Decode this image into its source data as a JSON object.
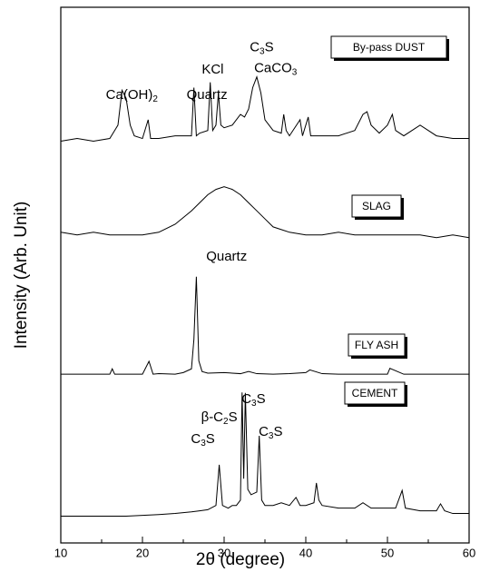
{
  "chart_data": {
    "type": "line",
    "xlabel": "2θ (degree)",
    "ylabel": "Intensity (Arb. Unit)",
    "xlim": [
      10,
      60
    ],
    "ylim": [
      0,
      100
    ],
    "xticks": [
      10,
      20,
      30,
      40,
      50,
      60
    ],
    "xticks_minor": [
      15,
      25,
      35,
      45,
      55
    ],
    "series": [
      {
        "name": "By-pass DUST",
        "color": "#000000",
        "x": [
          10,
          12,
          14,
          16,
          17,
          17.5,
          18,
          18.5,
          19,
          20,
          20.7,
          21,
          22,
          24,
          26,
          26.3,
          26.6,
          27,
          28,
          28.3,
          28.6,
          29,
          29.3,
          29.6,
          30,
          31,
          32,
          32.5,
          33,
          33.5,
          34,
          34.5,
          35,
          36,
          37,
          37.3,
          37.6,
          38,
          39.3,
          39.6,
          40.3,
          40.6,
          42,
          44,
          46,
          47,
          47.5,
          48,
          49,
          50,
          50.6,
          51,
          52,
          54,
          55,
          56,
          58,
          60
        ],
        "values": [
          75,
          75.5,
          75,
          75.5,
          78,
          84.5,
          83,
          78,
          76,
          75.5,
          79,
          75.5,
          75.5,
          76,
          76,
          85,
          76,
          76.5,
          77,
          86,
          77,
          78,
          84,
          78,
          77.5,
          78,
          80,
          79.5,
          81,
          85,
          87,
          84,
          79,
          77,
          76.5,
          80,
          77,
          76,
          79,
          76,
          79.5,
          76,
          76,
          76,
          77,
          80,
          80.5,
          78,
          76.5,
          78,
          80,
          77,
          76,
          78,
          77,
          76,
          75.5,
          75.5
        ]
      },
      {
        "name": "SLAG",
        "color": "#000000",
        "x": [
          10,
          12,
          14,
          16,
          18,
          20,
          22,
          24,
          26,
          27,
          28,
          29,
          30,
          31,
          32,
          33,
          34,
          35,
          36,
          38,
          40,
          42,
          44,
          46,
          48,
          50,
          52,
          54,
          56,
          58,
          60
        ],
        "values": [
          58,
          57.5,
          58,
          57.5,
          57.5,
          57.5,
          58,
          59.5,
          62,
          63.5,
          65,
          66,
          66.5,
          66,
          65,
          63.5,
          62,
          60.5,
          59,
          58,
          57.5,
          57.5,
          58,
          57.5,
          57.5,
          57.5,
          57.5,
          57.5,
          57,
          57.5,
          57
        ]
      },
      {
        "name": "FLY ASH",
        "color": "#000000",
        "x": [
          10,
          14,
          16,
          16.3,
          16.6,
          18,
          20,
          20.8,
          21.3,
          22,
          24,
          25,
          26,
          26.3,
          26.6,
          26.9,
          27.3,
          28,
          30,
          32,
          33,
          34,
          36,
          38,
          40,
          40.5,
          42,
          44,
          46,
          48,
          50,
          50.3,
          52,
          54,
          56,
          58,
          60
        ],
        "values": [
          31.5,
          31.5,
          31.5,
          32.5,
          31.5,
          31.5,
          31.5,
          33.9,
          31.5,
          31.6,
          31.5,
          31.8,
          32.5,
          38,
          49.7,
          34,
          32,
          31.7,
          31.8,
          31.6,
          32,
          31.6,
          31.5,
          31.6,
          31.8,
          32.3,
          31.6,
          31.5,
          31.5,
          31.5,
          31.5,
          32.6,
          31.5,
          31.5,
          31.5,
          31.5,
          31.5
        ]
      },
      {
        "name": "CEMENT",
        "color": "#000000",
        "x": [
          10,
          14,
          18,
          22,
          24,
          26,
          27,
          28,
          29,
          29.4,
          29.8,
          30.5,
          31,
          31.5,
          32,
          32.2,
          32.4,
          32.6,
          32.9,
          33.3,
          34,
          34.3,
          34.6,
          35,
          36,
          37,
          38,
          38.8,
          39.3,
          40,
          41,
          41.3,
          41.6,
          42,
          44,
          46,
          47,
          48,
          50,
          51,
          51.8,
          52.2,
          54,
          56,
          56.5,
          57,
          58,
          60
        ],
        "values": [
          5,
          5,
          5,
          5.3,
          5.5,
          5.8,
          6,
          6.2,
          7,
          14.6,
          7,
          6.5,
          7,
          7,
          8,
          28.1,
          12,
          28,
          10,
          9,
          9.5,
          20,
          8,
          7,
          7,
          7.5,
          7,
          8.5,
          7,
          7,
          7.5,
          11.2,
          8,
          7,
          6.5,
          6.5,
          7.5,
          6.5,
          6.5,
          6.5,
          9.8,
          6.5,
          6,
          6,
          7.3,
          6,
          5.5,
          5.5
        ]
      }
    ],
    "annotations": [
      {
        "text": "Ca(OH)2",
        "x": 18.7,
        "y": 83.6
      },
      {
        "text": "Quartz",
        "x": 27.9,
        "y": 83.6
      },
      {
        "text": "KCl",
        "x": 28.6,
        "y": 88.3
      },
      {
        "text": "C3S",
        "x": 34.6,
        "y": 92.5
      },
      {
        "text": "CaCO3",
        "x": 36.3,
        "y": 88.6
      },
      {
        "text": "Quartz",
        "x": 30.3,
        "y": 53.4
      },
      {
        "text": "C3S",
        "x": 33.6,
        "y": 26.8
      },
      {
        "text": "β-C2S",
        "x": 29.4,
        "y": 23.4
      },
      {
        "text": "C3S",
        "x": 35.7,
        "y": 20.7
      },
      {
        "text": "C3S",
        "x": 27.4,
        "y": 19.3
      }
    ]
  }
}
